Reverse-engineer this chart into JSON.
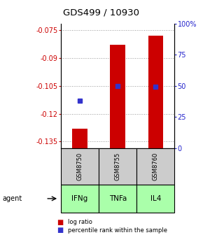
{
  "title": "GDS499 / 10930",
  "samples": [
    "GSM8750",
    "GSM8755",
    "GSM8760"
  ],
  "agents": [
    "IFNg",
    "TNFa",
    "IL4"
  ],
  "log_ratios": [
    -0.128,
    -0.083,
    -0.078
  ],
  "percentile_ranks_value": [
    -0.113,
    -0.105,
    -0.1055
  ],
  "ylim_left": [
    -0.1385,
    -0.0715
  ],
  "ylim_right": [
    0,
    100
  ],
  "yticks_left": [
    -0.075,
    -0.09,
    -0.105,
    -0.12,
    -0.135
  ],
  "yticks_right": [
    0,
    25,
    50,
    75,
    100
  ],
  "bar_color": "#cc0000",
  "dot_color": "#3333cc",
  "sample_box_color": "#cccccc",
  "agent_color": "#aaffaa",
  "grid_color": "#999999",
  "left_label_color": "#cc0000",
  "right_label_color": "#2222cc",
  "bar_width": 0.4
}
